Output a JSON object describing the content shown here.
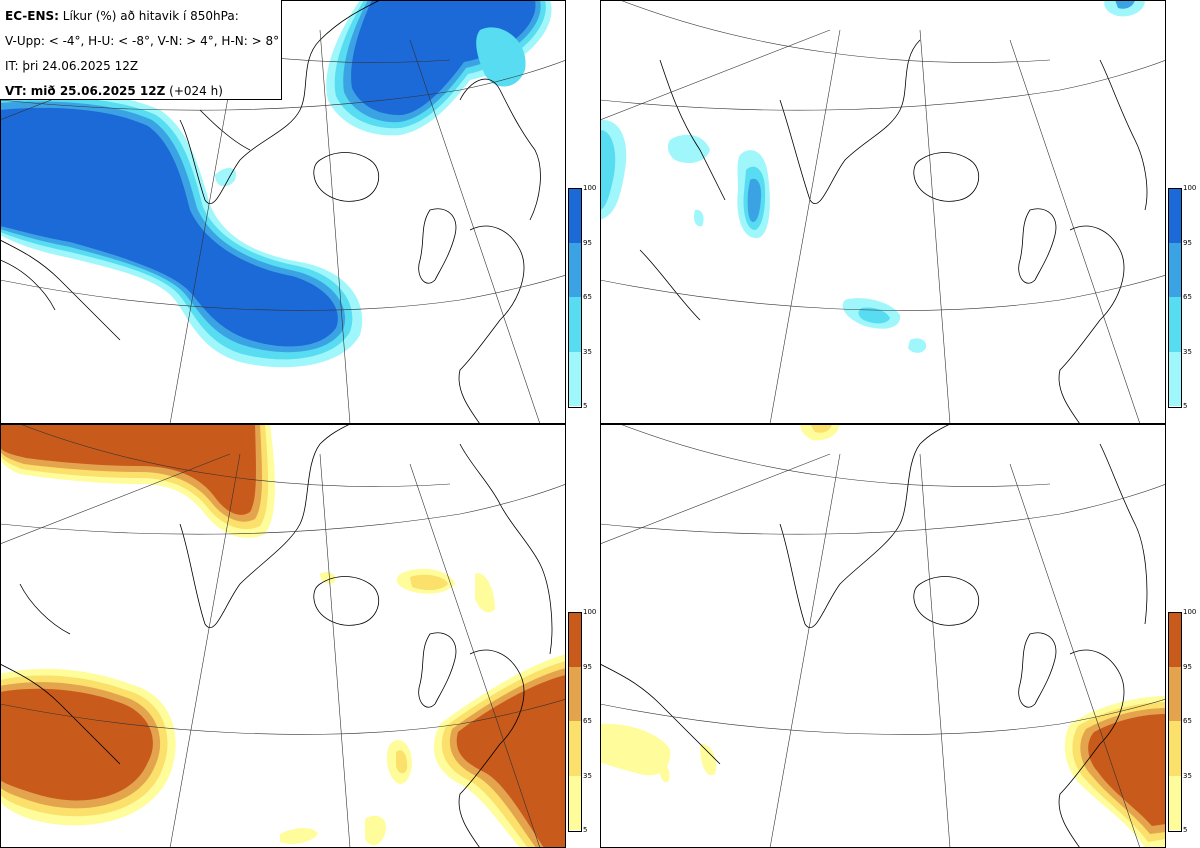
{
  "legend": {
    "line1_bold": "EC-ENS:",
    "line1_rest": " Líkur (%) að hitavik í 850hPa:",
    "line2": "V-Upp: < -4°, H-U: < -8°, V-N: > 4°, H-N: > 8°",
    "line3": "IT: þri 24.06.2025 12Z",
    "line4_bold": "VT: mið 25.06.2025 12Z",
    "line4_rest": " (+024 h)"
  },
  "colorbar_ticks": [
    "100",
    "95",
    "65",
    "35",
    "5"
  ],
  "colors": {
    "blue_scale": [
      "#9ff7fb",
      "#58dcf1",
      "#3ba3e4",
      "#1c69d8"
    ],
    "orange_scale": [
      "#fffc9b",
      "#fbe06b",
      "#e4a34d",
      "#c85a1b"
    ]
  },
  "panels": [
    {
      "position": "top-left",
      "parameter": "V-Upp",
      "scale": "blue"
    },
    {
      "position": "top-right",
      "parameter": "H-U",
      "scale": "blue"
    },
    {
      "position": "bottom-left",
      "parameter": "V-N",
      "scale": "orange"
    },
    {
      "position": "bottom-right",
      "parameter": "H-N",
      "scale": "orange"
    }
  ]
}
